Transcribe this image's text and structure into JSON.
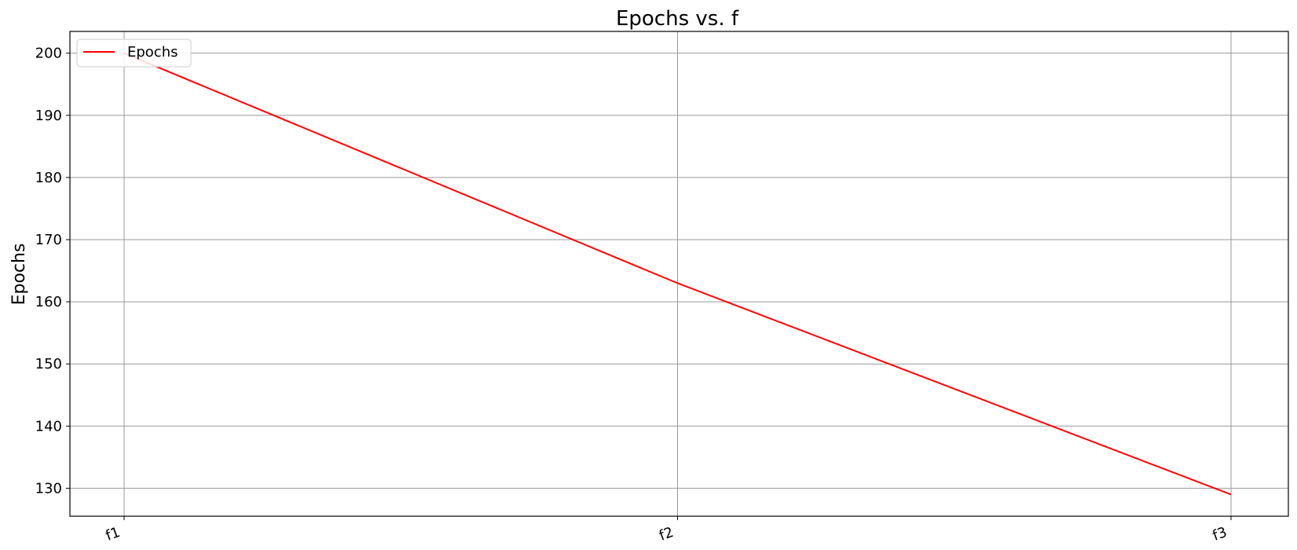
{
  "chart_data": {
    "type": "line",
    "title": "Epochs vs. f",
    "xlabel": "",
    "ylabel": "Epochs",
    "categories": [
      "f1",
      "f2",
      "f3"
    ],
    "series": [
      {
        "name": "Epochs",
        "values": [
          200,
          163,
          129
        ],
        "color": "#ff0000"
      }
    ],
    "ylim": [
      125.5,
      203.5
    ],
    "yticks": [
      130,
      140,
      150,
      160,
      170,
      180,
      190,
      200
    ],
    "grid": true,
    "legend_position": "top-left",
    "xtick_rotation_deg": -20
  }
}
